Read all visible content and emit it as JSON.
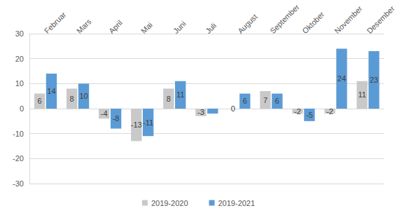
{
  "chart_data": {
    "type": "bar",
    "categories": [
      "Februar",
      "Mars",
      "April",
      "Mai",
      "Juni",
      "Juli",
      "August",
      "September",
      "Oktober",
      "November",
      "Desember"
    ],
    "series": [
      {
        "name": "2019-2020",
        "color": "#c9c9c9",
        "values": [
          6,
          8,
          -4,
          -13,
          8,
          -3,
          0,
          7,
          -2,
          -2,
          11
        ],
        "value_labels": [
          "6",
          "8",
          "-4",
          "-13",
          "8",
          "-3",
          "0",
          "7",
          "-2",
          "-2",
          "11"
        ]
      },
      {
        "name": "2019-2021",
        "color": "#5b9bd5",
        "values": [
          14,
          10,
          -8,
          -11,
          11,
          -2,
          6,
          6,
          -5,
          24,
          23
        ],
        "value_labels": [
          "14",
          "10",
          "-8",
          "-11",
          "11",
          null,
          "6",
          "6",
          "-5",
          "24",
          "23"
        ]
      }
    ],
    "ylim": [
      -30,
      30
    ],
    "yticks": [
      -30,
      -20,
      -10,
      0,
      10,
      20,
      30
    ],
    "grid": true,
    "legend": "bottom",
    "data_labels": true
  }
}
